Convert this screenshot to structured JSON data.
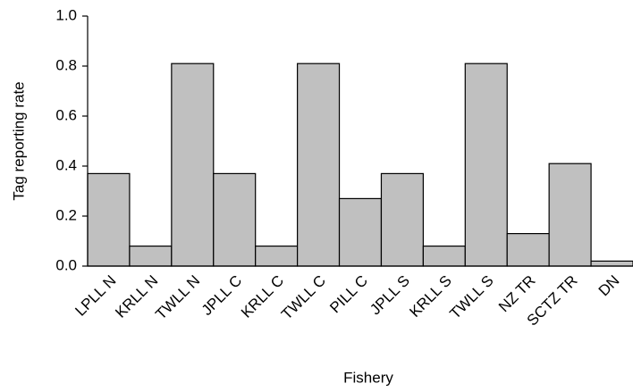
{
  "chart_data": {
    "type": "bar",
    "x_label": "Fishery",
    "y_label": "Tag reporting rate",
    "categories": [
      "LPLL N",
      "KRLL N",
      "TWLL N",
      "JPLL C",
      "KRLL C",
      "TWLL C",
      "PILL C",
      "JPLL S",
      "KRLL S",
      "TWLL S",
      "NZ TR",
      "SCTZ TR",
      "DN"
    ],
    "values": [
      0.37,
      0.08,
      0.81,
      0.37,
      0.08,
      0.81,
      0.27,
      0.37,
      0.08,
      0.81,
      0.13,
      0.41,
      0.02
    ],
    "color": "#c0c0c0",
    "ylim": [
      0,
      1
    ],
    "yticks": [
      {
        "value": 0,
        "label": "0.0"
      },
      0.2,
      0.4,
      0.6,
      0.8,
      {
        "value": 1,
        "label": "1.0"
      }
    ],
    "grid": false
  }
}
